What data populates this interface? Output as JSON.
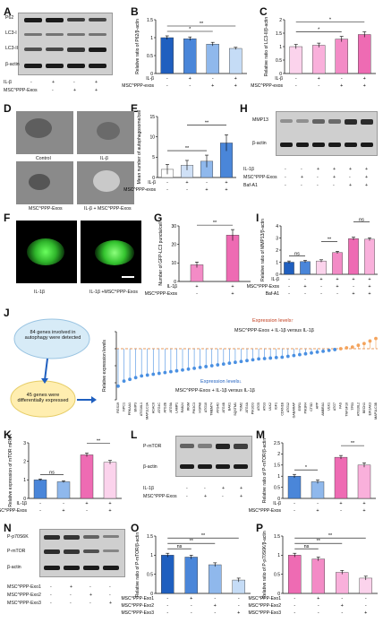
{
  "panel_labels": [
    "A",
    "B",
    "C",
    "D",
    "E",
    "F",
    "G",
    "H",
    "I",
    "J",
    "K",
    "L",
    "M",
    "N",
    "O",
    "P"
  ],
  "blot_A": {
    "rows": [
      "P62",
      "LC3-I",
      "LC3-II",
      "β-actin"
    ],
    "conditions": [
      {
        "label": "IL-β",
        "signs": [
          "-",
          "+",
          "-",
          "+"
        ]
      },
      {
        "label": "MSC^PPP-Exos",
        "signs": [
          "-",
          "-",
          "+",
          "+"
        ]
      }
    ]
  },
  "blot_H": {
    "rows": [
      "MMP13",
      "β-actin"
    ],
    "conditions": [
      {
        "label": "IL-1β",
        "signs": [
          "-",
          "-",
          "+",
          "+",
          "+",
          "+"
        ]
      },
      {
        "label": "MSC^PPP-Exos",
        "signs": [
          "-",
          "+",
          "-",
          "+",
          "-",
          "+"
        ]
      },
      {
        "label": "Baf-A1",
        "signs": [
          "-",
          "-",
          "-",
          "-",
          "+",
          "+"
        ]
      }
    ]
  },
  "blot_L": {
    "rows": [
      "P-mTOR",
      "β-actin"
    ],
    "conditions": [
      {
        "label": "IL-1β",
        "signs": [
          "-",
          "-",
          "+",
          "+"
        ]
      },
      {
        "label": "MSC^PPP-Exos",
        "signs": [
          "-",
          "+",
          "-",
          "+"
        ]
      }
    ]
  },
  "blot_N": {
    "rows": [
      "P-p70S6K",
      "P-mTOR",
      "β-actin"
    ],
    "conditions": [
      {
        "label": "MSC^PPP-Exo1",
        "signs": [
          "-",
          "+",
          "-",
          "-"
        ]
      },
      {
        "label": "MSC^PPP-Exo2",
        "signs": [
          "-",
          "-",
          "+",
          "-"
        ]
      },
      {
        "label": "MSC^PPP-Exo3",
        "signs": [
          "-",
          "-",
          "-",
          "+"
        ]
      }
    ]
  },
  "micro_D": {
    "labels": [
      "Control",
      "IL-β",
      "MSC^PPP-Exos",
      "IL-β + MSC^PPP-Exos"
    ]
  },
  "fluo_F": {
    "labels": [
      "IL-1β",
      "IL-1β +MSC^PPP-Exos"
    ]
  },
  "panel_J": {
    "box1": "84 genes involved in autophagy were detected",
    "box2": "45 genes were differentially expressed",
    "ylabel": "Relative expression levels",
    "up_label": "Expression levels↑",
    "up_legend": "MSC^PPP-Exos + IL-1β versus IL-1β",
    "down_label": "Expression levels↓",
    "down_legend": "MSC^PPP-Exos + IL-1β versus IL-1β",
    "up_color": "#f4a35b",
    "down_color": "#4a90e2"
  },
  "chart_data": [
    {
      "panel": "B",
      "type": "bar",
      "ylabel": "Relative ratio of P62/β-actin",
      "ylim": [
        0,
        1.5
      ],
      "yticks": [
        0.0,
        0.5,
        1.0,
        1.5
      ],
      "values": [
        1.0,
        0.97,
        0.82,
        0.7
      ],
      "errors": [
        0.05,
        0.05,
        0.05,
        0.03
      ],
      "colors": [
        "#1f5fbf",
        "#4a86d9",
        "#8fb8ec",
        "#c5dcf6"
      ],
      "conditions": [
        {
          "label": "IL-β",
          "signs": [
            "-",
            "+",
            "-",
            "+"
          ]
        },
        {
          "label": "MSC^PPP-exos",
          "signs": [
            "-",
            "-",
            "+",
            "+"
          ]
        }
      ],
      "sig": [
        {
          "from": 0,
          "to": 2,
          "text": "*"
        },
        {
          "from": 0,
          "to": 3,
          "text": "**"
        }
      ]
    },
    {
      "panel": "C",
      "type": "bar",
      "ylabel": "Relative ratio of LC3-II/β-actin",
      "ylim": [
        0,
        2.0
      ],
      "yticks": [
        0.0,
        0.5,
        1.0,
        1.5,
        2.0
      ],
      "values": [
        1.0,
        1.05,
        1.28,
        1.45
      ],
      "errors": [
        0.08,
        0.08,
        0.1,
        0.1
      ],
      "colors": [
        "#fbd3ec",
        "#f9b0db",
        "#f38bc6",
        "#ee6bb3"
      ],
      "conditions": [
        {
          "label": "IL-β",
          "signs": [
            "-",
            "+",
            "-",
            "+"
          ]
        },
        {
          "label": "MSC^PPP-exos",
          "signs": [
            "-",
            "-",
            "+",
            "+"
          ]
        }
      ],
      "sig": [
        {
          "from": 0,
          "to": 2,
          "text": "*"
        },
        {
          "from": 0,
          "to": 3,
          "text": "*"
        }
      ]
    },
    {
      "panel": "E",
      "type": "bar",
      "ylabel": "Mean number of autophagosome/cell",
      "ylim": [
        0,
        15
      ],
      "yticks": [
        0,
        5,
        10,
        15
      ],
      "values": [
        2,
        3,
        4,
        8.5
      ],
      "errors": [
        1.2,
        1.2,
        1.5,
        2.0
      ],
      "colors": [
        "#ffffff",
        "#cfe0f6",
        "#8fb8ec",
        "#4a86d9"
      ],
      "conditions": [
        {
          "label": "IL-β",
          "signs": [
            "-",
            "+",
            "-",
            "+"
          ]
        },
        {
          "label": "MSC^PPP-exos",
          "signs": [
            "-",
            "-",
            "+",
            "+"
          ]
        }
      ],
      "sig": [
        {
          "from": 0,
          "to": 2,
          "text": "**"
        },
        {
          "from": 1,
          "to": 3,
          "text": "**"
        }
      ]
    },
    {
      "panel": "G",
      "type": "bar",
      "ylabel": "Number of GFP-LC3 puncta/cell",
      "ylim": [
        0,
        30
      ],
      "yticks": [
        0,
        10,
        20,
        30
      ],
      "values": [
        9,
        25
      ],
      "errors": [
        1.5,
        3
      ],
      "colors": [
        "#f38bc6",
        "#ee6bb3"
      ],
      "conditions": [
        {
          "label": "IL-1β",
          "signs": [
            "+",
            "+"
          ]
        },
        {
          "label": "MSC^PPP-Exos",
          "signs": [
            "-",
            "+"
          ]
        }
      ],
      "sig": [
        {
          "from": 0,
          "to": 1,
          "text": "**"
        }
      ]
    },
    {
      "panel": "I",
      "type": "bar",
      "ylabel": "Relative ratio of MMP13/β-actin",
      "ylim": [
        0,
        4
      ],
      "yticks": [
        0,
        1,
        2,
        3,
        4
      ],
      "values": [
        1.0,
        1.05,
        1.1,
        1.8,
        2.95,
        2.9
      ],
      "errors": [
        0.1,
        0.1,
        0.1,
        0.1,
        0.12,
        0.12
      ],
      "colors": [
        "#1f5fbf",
        "#4a86d9",
        "#fbd3ec",
        "#f38bc6",
        "#ee6bb3",
        "#f9b0db"
      ],
      "conditions": [
        {
          "label": "IL-β",
          "signs": [
            "-",
            "-",
            "+",
            "+",
            "+",
            "+"
          ]
        },
        {
          "label": "MSC^PPP-Exos",
          "signs": [
            "-",
            "+",
            "-",
            "+",
            "-",
            "+"
          ]
        },
        {
          "label": "Baf-A1",
          "signs": [
            "-",
            "-",
            "-",
            "-",
            "+",
            "+"
          ]
        }
      ],
      "sig": [
        {
          "from": 0,
          "to": 1,
          "text": "ns"
        },
        {
          "from": 2,
          "to": 3,
          "text": "**"
        },
        {
          "from": 4,
          "to": 5,
          "text": "ns"
        }
      ]
    },
    {
      "panel": "J",
      "type": "scatter",
      "ylabel": "Relative expression levels",
      "ylim": [
        -2,
        2
      ],
      "yticks": [
        -2,
        -1,
        0,
        1,
        2
      ],
      "baseline": 1.0,
      "up_color": "#f4a35b",
      "down_color": "#4a90e2",
      "genes": [
        "RGS19",
        "NPC1",
        "PRKAA1",
        "BNIP3",
        "ATG16L1",
        "MAP1LC3A",
        "HDAC6",
        "ATG4C",
        "ATG2B",
        "ATG9A",
        "LAMP1",
        "RAB24",
        "IRGM",
        "PIK3C3",
        "HSPA8",
        "ATG10",
        "TMEM74",
        "ATG4D",
        "ATG4B",
        "BAK1",
        "SQSTM1",
        "TGM2",
        "ATG4A",
        "PIK3CG",
        "ATG5",
        "ATG3",
        "ULK2",
        "IGF1",
        "CDKN1B",
        "ATG12",
        "GABARAP",
        "ESR1",
        "PIK3R4",
        "CTSD",
        "APP",
        "AMBRA1",
        "ULK1",
        "ATG7",
        "FAS",
        "TNFSF10",
        "TP53",
        "ATG16L2",
        "BECN1",
        "EIF2AK3",
        "MAP1LC3B"
      ],
      "values": [
        -1.2,
        -0.9,
        -0.8,
        -0.7,
        -0.6,
        -0.55,
        -0.5,
        -0.45,
        -0.4,
        -0.35,
        -0.3,
        -0.25,
        -0.2,
        -0.15,
        -0.1,
        -0.05,
        0.0,
        0.05,
        0.1,
        0.15,
        0.2,
        0.25,
        0.3,
        0.35,
        0.4,
        0.42,
        0.45,
        0.48,
        0.5,
        0.55,
        0.6,
        0.65,
        0.7,
        0.75,
        0.8,
        0.85,
        0.9,
        0.95,
        1.0,
        1.05,
        1.1,
        1.2,
        1.3,
        1.45,
        1.6
      ]
    },
    {
      "panel": "K",
      "type": "bar",
      "ylabel": "Relative expression of mTOR mRNA",
      "ylim": [
        0,
        3
      ],
      "yticks": [
        0,
        1,
        2,
        3
      ],
      "values": [
        1.0,
        0.9,
        2.35,
        1.95
      ],
      "errors": [
        0.05,
        0.05,
        0.1,
        0.1
      ],
      "colors": [
        "#4a86d9",
        "#8fb8ec",
        "#ee6bb3",
        "#fbd3ec"
      ],
      "conditions": [
        {
          "label": "IL-1β",
          "signs": [
            "-",
            "-",
            "+",
            "+"
          ]
        },
        {
          "label": "MSC^PPP-Exos",
          "signs": [
            "-",
            "+",
            "-",
            "+"
          ]
        }
      ],
      "sig": [
        {
          "from": 0,
          "to": 1,
          "text": "ns"
        },
        {
          "from": 2,
          "to": 3,
          "text": "**"
        }
      ]
    },
    {
      "panel": "M",
      "type": "bar",
      "ylabel": "Relative ratio of P-mTOR/β-actin",
      "ylim": [
        0,
        2.5
      ],
      "yticks": [
        0.0,
        0.5,
        1.0,
        1.5,
        2.0,
        2.5
      ],
      "values": [
        1.0,
        0.75,
        1.85,
        1.5
      ],
      "errors": [
        0.08,
        0.08,
        0.08,
        0.1
      ],
      "colors": [
        "#4a86d9",
        "#8fb8ec",
        "#ee6bb3",
        "#f9b0db"
      ],
      "conditions": [
        {
          "label": "IL-β",
          "signs": [
            "-",
            "-",
            "+",
            "+"
          ]
        },
        {
          "label": "MSC^PPP-Exos",
          "signs": [
            "-",
            "+",
            "-",
            "+"
          ]
        }
      ],
      "sig": [
        {
          "from": 0,
          "to": 1,
          "text": "*"
        },
        {
          "from": 2,
          "to": 3,
          "text": "**"
        }
      ]
    },
    {
      "panel": "O",
      "type": "bar",
      "ylabel": "Relative ratio of P-mTOR/β-actin",
      "ylim": [
        0,
        1.5
      ],
      "yticks": [
        0.0,
        0.5,
        1.0,
        1.5
      ],
      "values": [
        1.0,
        0.95,
        0.75,
        0.35
      ],
      "errors": [
        0.05,
        0.05,
        0.05,
        0.05
      ],
      "colors": [
        "#1f5fbf",
        "#4a86d9",
        "#8fb8ec",
        "#c5dcf6"
      ],
      "conditions": [
        {
          "label": "MSC^PPP-Exo1",
          "signs": [
            "-",
            "+",
            "-",
            "-"
          ]
        },
        {
          "label": "MSC^PPP-Exo2",
          "signs": [
            "-",
            "-",
            "+",
            "-"
          ]
        },
        {
          "label": "MSC^PPP-Exo3",
          "signs": [
            "-",
            "-",
            "-",
            "+"
          ]
        }
      ],
      "sig": [
        {
          "from": 0,
          "to": 1,
          "text": "ns"
        },
        {
          "from": 0,
          "to": 2,
          "text": "**"
        },
        {
          "from": 0,
          "to": 3,
          "text": "**"
        }
      ]
    },
    {
      "panel": "P",
      "type": "bar",
      "ylabel": "Relative ratio of P-p70S6K/β-actin",
      "ylim": [
        0,
        1.5
      ],
      "yticks": [
        0.0,
        0.5,
        1.0,
        1.5
      ],
      "values": [
        1.0,
        0.9,
        0.55,
        0.4
      ],
      "errors": [
        0.05,
        0.05,
        0.05,
        0.05
      ],
      "colors": [
        "#ee6bb3",
        "#f38bc6",
        "#f9b0db",
        "#fbd3ec"
      ],
      "conditions": [
        {
          "label": "MSC^PPP-Exo1",
          "signs": [
            "-",
            "+",
            "-",
            "-"
          ]
        },
        {
          "label": "MSC^PPP-Exo2",
          "signs": [
            "-",
            "-",
            "+",
            "-"
          ]
        },
        {
          "label": "MSC^PPP-Exo3",
          "signs": [
            "-",
            "-",
            "-",
            "+"
          ]
        }
      ],
      "sig": [
        {
          "from": 0,
          "to": 1,
          "text": "ns"
        },
        {
          "from": 0,
          "to": 2,
          "text": "**"
        },
        {
          "from": 0,
          "to": 3,
          "text": "**"
        }
      ]
    }
  ]
}
